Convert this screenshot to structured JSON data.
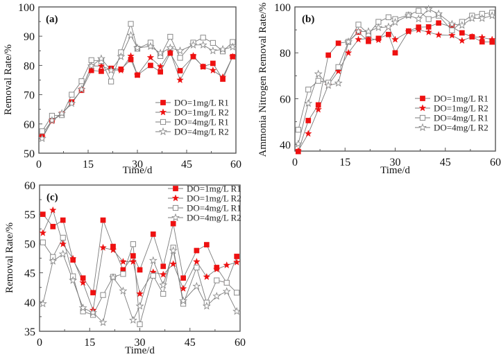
{
  "figure": {
    "legend_entries": [
      "DO=1mg/L  R1",
      "DO=1mg/L  R2",
      "DO=4mg/L  R1",
      "DO=4mg/L  R2"
    ]
  },
  "colors": {
    "do1": "#ee1111",
    "do4": "#8a8a8a",
    "line": "#7a7a7a",
    "axis": "#555555"
  },
  "chart_data": [
    {
      "id": "a",
      "type": "line",
      "panel_label": "(a)",
      "title": "",
      "xlabel": "Time/d",
      "ylabel": "Removal Rate/%",
      "xlim": [
        0,
        60
      ],
      "ylim": [
        50,
        100
      ],
      "xticks": [
        0,
        15,
        30,
        45,
        60
      ],
      "yticks": [
        50,
        60,
        70,
        80,
        90,
        100
      ],
      "legend": "center-right",
      "x": [
        1,
        4,
        7,
        10,
        13,
        16,
        19,
        22,
        25,
        28,
        30,
        34,
        37,
        40,
        43,
        47,
        50,
        53,
        56,
        59
      ],
      "series": [
        {
          "name": "DO=1mg/L  R1",
          "marker": "filled-square",
          "values": [
            56.5,
            61.2,
            63.3,
            67.5,
            71.5,
            78.3,
            78,
            79,
            78.7,
            82,
            76.7,
            80,
            77.8,
            84.2,
            78.2,
            83,
            79.6,
            80.7,
            75.3,
            83
          ]
        },
        {
          "name": "DO=1mg/L  R2",
          "marker": "filled-star",
          "values": [
            55.5,
            61,
            63.5,
            67,
            71.8,
            79.8,
            79.8,
            78.5,
            78.3,
            83.2,
            76.7,
            82.7,
            79.6,
            84.7,
            75,
            83.3,
            79.5,
            78.3,
            76,
            83
          ]
        },
        {
          "name": "DO=4mg/L  R1",
          "marker": "open-square",
          "values": [
            57.5,
            62.8,
            63,
            70,
            74.6,
            81.8,
            81.5,
            74.5,
            84.5,
            94.2,
            85.7,
            87.8,
            83.2,
            89.8,
            82.6,
            87.8,
            89.5,
            87.7,
            84.8,
            88
          ]
        },
        {
          "name": "DO=4mg/L  R2",
          "marker": "open-star",
          "values": [
            55,
            61.2,
            63.6,
            67,
            71.8,
            79.8,
            82.3,
            78.3,
            83,
            90.3,
            86,
            86.5,
            84.2,
            86,
            85,
            87,
            87,
            85,
            85.5,
            86.3
          ]
        }
      ]
    },
    {
      "id": "b",
      "type": "line",
      "panel_label": "(b)",
      "title": "",
      "xlabel": "Time/d",
      "ylabel": "Ammonia  Nitrogen Removal  Rate/%",
      "xlim": [
        0,
        60
      ],
      "ylim": [
        35,
        100
      ],
      "xticks": [
        0,
        15,
        30,
        45,
        60
      ],
      "yticks": [
        40,
        60,
        80,
        100
      ],
      "legend": "center-right",
      "x": [
        1,
        4,
        7,
        10,
        13,
        16,
        19,
        22,
        25,
        28,
        30,
        34,
        37,
        40,
        43,
        47,
        50,
        53,
        56,
        59
      ],
      "series": [
        {
          "name": "DO=1mg/L  R1",
          "marker": "filled-square",
          "values": [
            37,
            50.5,
            57.3,
            79,
            84.2,
            84.8,
            89,
            85,
            86.3,
            88,
            80,
            89.5,
            91.2,
            91.3,
            93,
            91.3,
            88.7,
            87,
            84.8,
            84.7
          ]
        },
        {
          "name": "DO=1mg/L  R2",
          "marker": "filled-star",
          "values": [
            37.3,
            44.8,
            55.3,
            66,
            72,
            80,
            85.8,
            86.3,
            85.6,
            91.2,
            85.8,
            89.2,
            90,
            89,
            87.8,
            87.6,
            85.3,
            87,
            86.7,
            85.8
          ]
        },
        {
          "name": "DO=4mg/L  R1",
          "marker": "open-square",
          "values": [
            46.5,
            64,
            67.8,
            67,
            73.8,
            84.8,
            92.3,
            88.2,
            93.5,
            95.5,
            94.7,
            96.5,
            98.3,
            94.7,
            96.2,
            89.8,
            93.5,
            96.2,
            97,
            97.5
          ]
        },
        {
          "name": "DO=4mg/L  R2",
          "marker": "open-star",
          "values": [
            40.3,
            58,
            70.8,
            65.8,
            66.8,
            84.8,
            89.3,
            89.3,
            91,
            91.3,
            93.3,
            96.3,
            94.8,
            99,
            97,
            92.5,
            92,
            95,
            95,
            96.2
          ]
        }
      ]
    },
    {
      "id": "c",
      "type": "line",
      "panel_label": "(c)",
      "title": "",
      "xlabel": "Time/d",
      "ylabel": "Removal Rate/%",
      "xlim": [
        0,
        60
      ],
      "ylim": [
        35,
        60
      ],
      "xticks": [
        0,
        15,
        30,
        45,
        60
      ],
      "yticks": [
        35,
        40,
        45,
        50,
        55,
        60
      ],
      "legend": "top-right",
      "x": [
        1,
        4,
        7,
        10,
        13,
        16,
        19,
        22,
        25,
        28,
        30,
        34,
        37,
        40,
        43,
        47,
        50,
        53,
        56,
        59
      ],
      "series": [
        {
          "name": "DO=1mg/L  R1",
          "marker": "filled-square",
          "values": [
            55,
            52.9,
            54,
            47.2,
            44.1,
            41.6,
            54,
            49.5,
            45.5,
            47.9,
            45.5,
            51.6,
            46.1,
            53.4,
            44.1,
            48.8,
            49.8,
            45.9,
            43.3,
            47.8
          ]
        },
        {
          "name": "DO=1mg/L  R2",
          "marker": "filled-star",
          "values": [
            51.8,
            55.7,
            49.9,
            47.4,
            43.3,
            38.6,
            49.3,
            48.9,
            46.9,
            46.9,
            41.4,
            45.1,
            44.7,
            46.5,
            42.3,
            46.9,
            44.3,
            45.6,
            46.3,
            46.8
          ]
        },
        {
          "name": "DO=4mg/L  R1",
          "marker": "open-square",
          "values": [
            50.2,
            47.7,
            51,
            44.4,
            38.4,
            37.8,
            41.2,
            44.3,
            44.8,
            49.9,
            36.2,
            44.5,
            41.4,
            49.3,
            39.7,
            45.9,
            39.9,
            43.7,
            43.3,
            41.6
          ]
        },
        {
          "name": "DO=4mg/L  R2",
          "marker": "open-star",
          "values": [
            39.7,
            47,
            48.2,
            43.7,
            39,
            38.2,
            36.5,
            44.2,
            41.9,
            36.9,
            39.3,
            47.1,
            42.9,
            48.8,
            40.2,
            42.7,
            39.3,
            41,
            41.8,
            38.4
          ]
        }
      ]
    }
  ]
}
